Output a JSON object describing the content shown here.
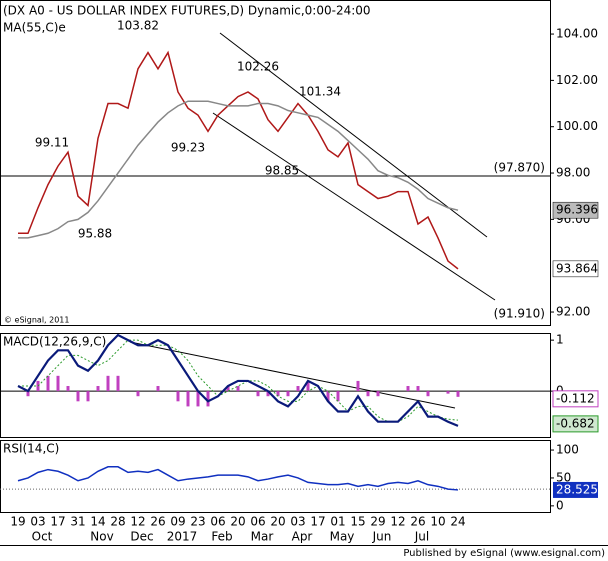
{
  "title": "(DX A0 - US DOLLAR INDEX FUTURES,D) Dynamic,0:00-24:00",
  "copyright": "© eSignal, 2011",
  "footer": "Published by eSignal (www.esignal.com)",
  "x_axis": {
    "categories": [
      "19",
      null,
      "03",
      null,
      "17",
      null,
      "31",
      null,
      "14",
      null,
      "28",
      null,
      "12",
      null,
      "26",
      null,
      "09",
      null,
      "23",
      null,
      "06",
      null,
      "20",
      null,
      "06",
      null,
      "20",
      null,
      "03",
      null,
      "17",
      null,
      "01",
      null,
      "15",
      null,
      "29",
      null,
      "12",
      null,
      "26",
      null,
      "10",
      null,
      "24"
    ],
    "months": [
      null,
      null,
      "Oct",
      null,
      null,
      null,
      null,
      null,
      "Nov",
      null,
      null,
      null,
      "Dec",
      null,
      null,
      null,
      "2017",
      null,
      null,
      null,
      "Feb",
      null,
      null,
      null,
      "Mar",
      null,
      null,
      null,
      "Apr",
      null,
      null,
      null,
      "May",
      null,
      null,
      null,
      "Jun",
      null,
      null,
      null,
      "Jul",
      null,
      null,
      null,
      null
    ]
  },
  "chart_data": [
    {
      "type": "line",
      "panel": "price",
      "ylim": [
        91.44,
        105.47
      ],
      "yticks": [
        {
          "value": 104,
          "label": "104.00"
        },
        {
          "value": 102,
          "label": "102.00"
        },
        {
          "value": 100,
          "label": "100.00"
        },
        {
          "value": 98,
          "label": "98.00"
        },
        {
          "value": 96,
          "label": "96.00"
        },
        {
          "value": 92,
          "label": "92.00"
        }
      ],
      "series": [
        {
          "name": "DX A0",
          "color": "#b01818",
          "values": [
            95.4,
            95.4,
            96.5,
            97.5,
            98.3,
            98.9,
            97.0,
            96.6,
            99.5,
            101.0,
            101.0,
            100.8,
            102.5,
            103.2,
            102.5,
            103.2,
            101.5,
            100.8,
            100.5,
            99.8,
            100.5,
            100.9,
            101.3,
            101.5,
            101.2,
            100.3,
            99.8,
            100.4,
            101.0,
            100.5,
            99.8,
            99.0,
            98.7,
            99.3,
            97.5,
            97.2,
            96.9,
            97.0,
            97.2,
            97.2,
            95.8,
            96.1,
            95.2,
            94.2,
            93.864
          ]
        },
        {
          "name": "MA(55,C)e",
          "color": "#888888",
          "values": [
            95.2,
            95.2,
            95.3,
            95.4,
            95.6,
            95.9,
            96.0,
            96.3,
            96.8,
            97.4,
            98.0,
            98.6,
            99.2,
            99.7,
            100.2,
            100.6,
            100.9,
            101.1,
            101.1,
            101.1,
            101.0,
            100.9,
            100.9,
            100.9,
            101.0,
            101.0,
            100.9,
            100.7,
            100.6,
            100.5,
            100.4,
            100.1,
            99.8,
            99.4,
            99.0,
            98.6,
            98.1,
            97.9,
            97.8,
            97.6,
            97.3,
            96.9,
            96.7,
            96.5,
            96.396
          ]
        }
      ],
      "annotations": [
        "103.82",
        "102.26",
        "101.34",
        "99.11",
        "99.23",
        "98.85",
        "95.88"
      ],
      "hline": {
        "value": 97.87,
        "label": "(97.870)"
      },
      "channel_label": {
        "value": 91.91,
        "label": "(91.910)"
      }
    },
    {
      "type": "macd",
      "panel": "macd",
      "title": "MACD(12,26,9,C)",
      "ylim": [
        -0.9,
        1.14
      ],
      "yticks": [
        0,
        1
      ],
      "series": [
        {
          "name": "MACD",
          "color": "#0a1a7a",
          "values": [
            0.1,
            0.0,
            0.3,
            0.6,
            0.8,
            0.8,
            0.5,
            0.4,
            0.6,
            0.9,
            1.1,
            1.0,
            0.9,
            0.9,
            1.0,
            0.9,
            0.6,
            0.3,
            0.0,
            -0.2,
            -0.1,
            0.1,
            0.2,
            0.2,
            0.1,
            0.0,
            -0.2,
            -0.3,
            -0.1,
            0.2,
            0.1,
            -0.2,
            -0.4,
            -0.4,
            -0.1,
            -0.4,
            -0.6,
            -0.6,
            -0.6,
            -0.4,
            -0.2,
            -0.5,
            -0.5,
            -0.6,
            -0.682
          ]
        },
        {
          "name": "Signal",
          "color": "#2a9a2a",
          "values": [
            0.1,
            0.1,
            0.1,
            0.3,
            0.5,
            0.7,
            0.7,
            0.6,
            0.5,
            0.6,
            0.8,
            1.0,
            1.0,
            0.9,
            0.9,
            0.9,
            0.8,
            0.6,
            0.3,
            0.1,
            -0.1,
            0.0,
            0.1,
            0.2,
            0.2,
            0.1,
            -0.1,
            -0.2,
            -0.2,
            0.0,
            0.1,
            0.0,
            -0.2,
            -0.4,
            -0.3,
            -0.3,
            -0.5,
            -0.6,
            -0.6,
            -0.5,
            -0.3,
            -0.4,
            -0.5,
            -0.55,
            -0.57
          ]
        },
        {
          "name": "Histogram",
          "color": "#c040c0",
          "values": [
            0,
            -0.1,
            0.2,
            0.3,
            0.3,
            0.1,
            -0.2,
            -0.2,
            0.1,
            0.3,
            0.3,
            0,
            -0.1,
            0,
            0.1,
            0,
            -0.2,
            -0.3,
            -0.3,
            -0.3,
            0,
            0.1,
            0.1,
            0,
            -0.1,
            -0.1,
            -0.1,
            -0.1,
            0.1,
            0.2,
            0,
            -0.2,
            -0.2,
            0,
            0.2,
            -0.1,
            -0.1,
            0,
            0,
            0.1,
            0.1,
            -0.1,
            0,
            -0.05,
            -0.112
          ]
        }
      ]
    },
    {
      "type": "line",
      "panel": "rsi",
      "title": "RSI(14,C)",
      "ylim": [
        -11,
        118
      ],
      "yticks": [
        0,
        50,
        100
      ],
      "ref_line": 30,
      "series": [
        {
          "name": "RSI",
          "color": "#1030c0",
          "values": [
            45,
            50,
            60,
            65,
            62,
            55,
            45,
            50,
            62,
            70,
            70,
            60,
            62,
            60,
            65,
            55,
            45,
            48,
            50,
            52,
            55,
            55,
            55,
            52,
            45,
            48,
            52,
            55,
            50,
            42,
            40,
            38,
            38,
            40,
            35,
            38,
            35,
            40,
            42,
            40,
            45,
            38,
            35,
            30,
            28.525
          ]
        }
      ]
    }
  ]
}
